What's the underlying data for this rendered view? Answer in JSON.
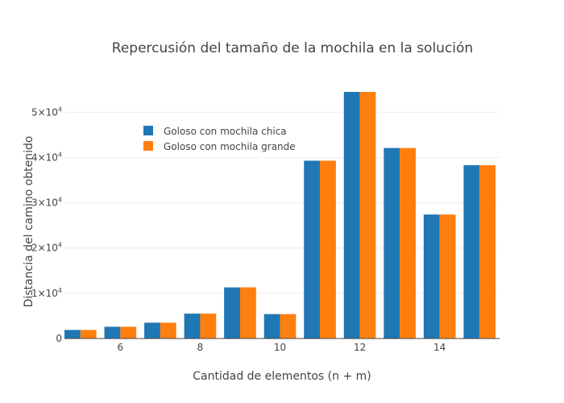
{
  "chart_data": {
    "type": "bar",
    "title": "Repercusión del tamaño de la mochila en la solución",
    "xlabel": "Cantidad de elementos (n + m)",
    "ylabel": "Distancia del camino obtenido",
    "x": [
      5,
      6,
      7,
      8,
      9,
      10,
      11,
      12,
      13,
      14,
      15
    ],
    "x_ticks": [
      6,
      8,
      10,
      12,
      14
    ],
    "x_tick_labels": [
      "6",
      "8",
      "10",
      "12",
      "14"
    ],
    "xlim": [
      4.6,
      15.5
    ],
    "ylim": [
      0,
      57000
    ],
    "y_ticks": [
      0,
      10000,
      20000,
      30000,
      40000,
      50000
    ],
    "y_tick_labels": [
      {
        "mant": "0",
        "exp": ""
      },
      {
        "mant": "1×10",
        "exp": "4"
      },
      {
        "mant": "2×10",
        "exp": "4"
      },
      {
        "mant": "3×10",
        "exp": "4"
      },
      {
        "mant": "4×10",
        "exp": "4"
      },
      {
        "mant": "5×10",
        "exp": "4"
      }
    ],
    "grid": true,
    "legend_position": "top-left",
    "series": [
      {
        "name": "Goloso con mochila chica",
        "color": "#1f77b4",
        "values": [
          1900,
          2600,
          3500,
          5500,
          11300,
          5400,
          39300,
          54500,
          42100,
          27400,
          38300
        ]
      },
      {
        "name": "Goloso con mochila grande",
        "color": "#ff7f0e",
        "values": [
          1900,
          2600,
          3500,
          5500,
          11300,
          5400,
          39300,
          54500,
          42100,
          27400,
          38300
        ]
      }
    ]
  }
}
